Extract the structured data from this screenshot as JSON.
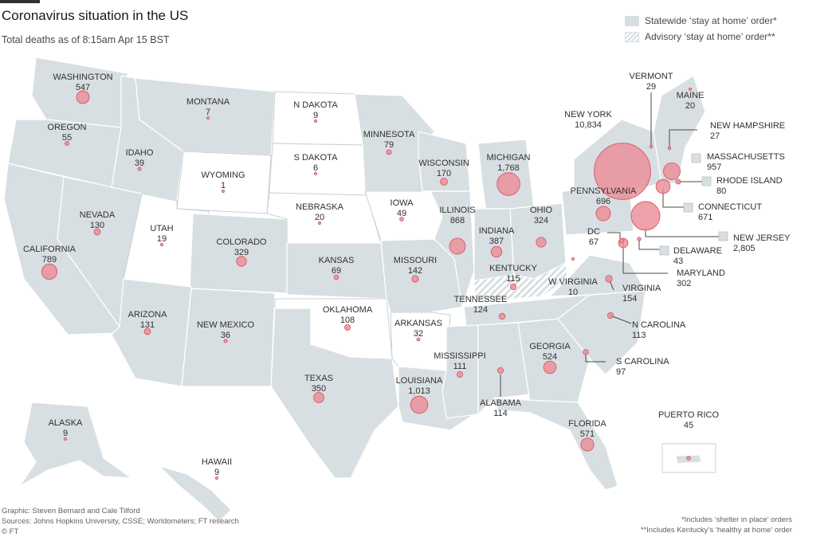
{
  "header": {
    "title": "Coronavirus situation in the US",
    "subtitle": "Total deaths as of 8:15am Apr 15 BST"
  },
  "legend": {
    "statewide": "Statewide ‘stay at home’ order*",
    "advisory": "Advisory ‘stay at home’ order**"
  },
  "colors": {
    "statewide_fill": "#d8dfe3",
    "no_order_fill": "#ffffff",
    "bubble": "#ec8d97"
  },
  "states": [
    {
      "name": "WASHINGTON",
      "deaths": "547"
    },
    {
      "name": "OREGON",
      "deaths": "55"
    },
    {
      "name": "CALIFORNIA",
      "deaths": "789"
    },
    {
      "name": "NEVADA",
      "deaths": "130"
    },
    {
      "name": "IDAHO",
      "deaths": "39"
    },
    {
      "name": "MONTANA",
      "deaths": "7"
    },
    {
      "name": "WYOMING",
      "deaths": "1"
    },
    {
      "name": "UTAH",
      "deaths": "19"
    },
    {
      "name": "ARIZONA",
      "deaths": "131"
    },
    {
      "name": "COLORADO",
      "deaths": "329"
    },
    {
      "name": "NEW MEXICO",
      "deaths": "36"
    },
    {
      "name": "N DAKOTA",
      "deaths": "9"
    },
    {
      "name": "S DAKOTA",
      "deaths": "6"
    },
    {
      "name": "NEBRASKA",
      "deaths": "20"
    },
    {
      "name": "KANSAS",
      "deaths": "69"
    },
    {
      "name": "OKLAHOMA",
      "deaths": "108"
    },
    {
      "name": "TEXAS",
      "deaths": "350"
    },
    {
      "name": "MINNESOTA",
      "deaths": "79"
    },
    {
      "name": "IOWA",
      "deaths": "49"
    },
    {
      "name": "MISSOURI",
      "deaths": "142"
    },
    {
      "name": "ARKANSAS",
      "deaths": "32"
    },
    {
      "name": "LOUISIANA",
      "deaths": "1,013"
    },
    {
      "name": "WISCONSIN",
      "deaths": "170"
    },
    {
      "name": "ILLINOIS",
      "deaths": "868"
    },
    {
      "name": "MICHIGAN",
      "deaths": "1,768"
    },
    {
      "name": "INDIANA",
      "deaths": "387"
    },
    {
      "name": "OHIO",
      "deaths": "324"
    },
    {
      "name": "KENTUCKY",
      "deaths": "115"
    },
    {
      "name": "TENNESSEE",
      "deaths": "124"
    },
    {
      "name": "MISSISSIPPI",
      "deaths": "111"
    },
    {
      "name": "ALABAMA",
      "deaths": "114"
    },
    {
      "name": "GEORGIA",
      "deaths": "524"
    },
    {
      "name": "FLORIDA",
      "deaths": "571"
    },
    {
      "name": "S CAROLINA",
      "deaths": "97"
    },
    {
      "name": "N CAROLINA",
      "deaths": "113"
    },
    {
      "name": "VIRGINIA",
      "deaths": "154"
    },
    {
      "name": "W VIRGINIA",
      "deaths": "10"
    },
    {
      "name": "PENNSYLVANIA",
      "deaths": "696"
    },
    {
      "name": "NEW YORK",
      "deaths": "10,834"
    },
    {
      "name": "VERMONT",
      "deaths": "29"
    },
    {
      "name": "MAINE",
      "deaths": "20"
    },
    {
      "name": "NEW HAMPSHIRE",
      "deaths": "27"
    },
    {
      "name": "MASSACHUSETTS",
      "deaths": "957"
    },
    {
      "name": "RHODE ISLAND",
      "deaths": "80"
    },
    {
      "name": "CONNECTICUT",
      "deaths": "671"
    },
    {
      "name": "NEW JERSEY",
      "deaths": "2,805"
    },
    {
      "name": "DELAWARE",
      "deaths": "43"
    },
    {
      "name": "MARYLAND",
      "deaths": "302"
    },
    {
      "name": "DC",
      "deaths": "67"
    },
    {
      "name": "ALASKA",
      "deaths": "9"
    },
    {
      "name": "HAWAII",
      "deaths": "9"
    },
    {
      "name": "PUERTO RICO",
      "deaths": "45"
    }
  ],
  "footer": {
    "credit_graphic": "Graphic: Steven Bernard and Cale Tilford",
    "credit_sources": "Sources: Johns Hopkins University, CSSE; Worldometers; FT research",
    "credit_ft": "© FT",
    "note_1": "*Includes ‘shelter in place’ orders",
    "note_2": "**Includes Kentucky’s ‘healthy at home’ order"
  }
}
